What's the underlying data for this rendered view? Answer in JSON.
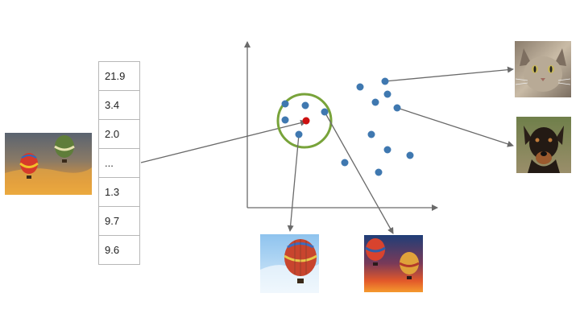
{
  "feature_vector": [
    "21.9",
    "3.4",
    "2.0",
    "...",
    "1.3",
    "9.7",
    "9.6"
  ],
  "images": {
    "query": "hot-air-balloons-sunset-photo",
    "neighbor_1": "single-balloon-blue-sky-photo",
    "neighbor_2": "balloons-orange-sunset-photo",
    "cat": "cat-photo",
    "dog": "dog-photo"
  },
  "colors": {
    "point": "#3f78b0",
    "query_point": "#cc1111",
    "neighborhood_circle": "#78a33a",
    "arrow": "#6a6a6a",
    "table_border": "#b7b7b7"
  }
}
